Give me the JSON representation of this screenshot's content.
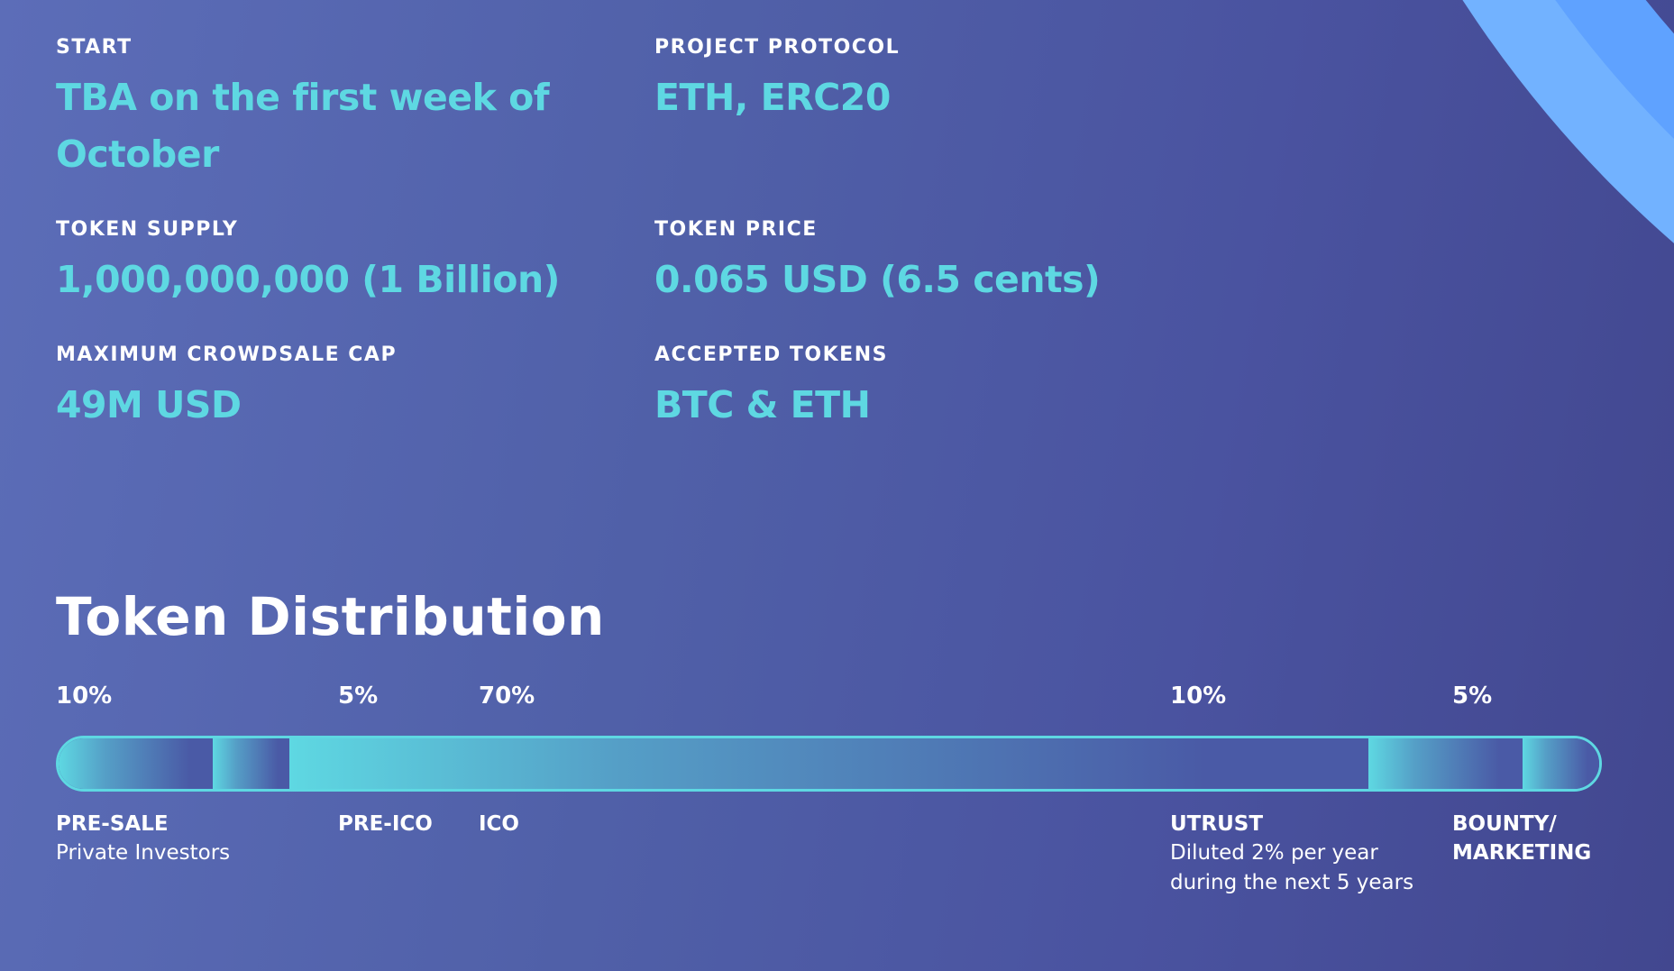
{
  "info": {
    "start": {
      "label": "START",
      "value": "TBA on the first week of October"
    },
    "protocol": {
      "label": "PROJECT PROTOCOL",
      "value": "ETH, ERC20"
    },
    "supply": {
      "label": "TOKEN SUPPLY",
      "value": "1,000,000,000 (1 Billion)"
    },
    "price": {
      "label": "TOKEN PRICE",
      "value": "0.065 USD (6.5 cents)"
    },
    "cap": {
      "label": "MAXIMUM CROWDSALE CAP",
      "value": "49M USD"
    },
    "accepted": {
      "label": "ACCEPTED TOKENS",
      "value": "BTC & ETH"
    }
  },
  "distribution": {
    "title": "Token Distribution",
    "segments": [
      {
        "percent": "10%",
        "share": 0.1,
        "name": "PRE-SALE",
        "desc": "Private Investors"
      },
      {
        "percent": "5%",
        "share": 0.05,
        "name": "PRE-ICO",
        "desc": ""
      },
      {
        "percent": "70%",
        "share": 0.7,
        "name": "ICO",
        "desc": ""
      },
      {
        "percent": "10%",
        "share": 0.1,
        "name": "UTRUST",
        "desc": "Diluted 2% per year during the next 5 years"
      },
      {
        "percent": "5%",
        "share": 0.05,
        "name": "BOUNTY/ MARKETING",
        "desc": ""
      }
    ]
  },
  "colors": {
    "accent": "#5ed8e2",
    "background": "#4f5ca6",
    "arc_outer": "#72b2ff",
    "arc_inner": "#5fa2ff"
  }
}
